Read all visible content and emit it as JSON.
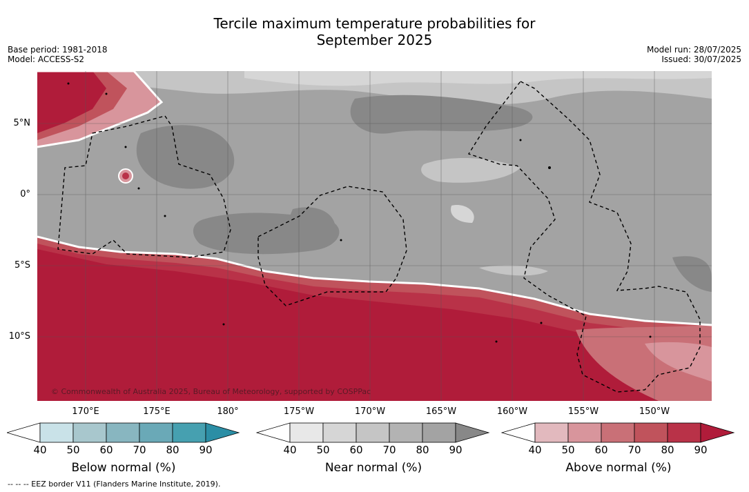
{
  "title_line1": "Tercile maximum temperature probabilities for",
  "title_line2": "September 2025",
  "base_period": "Base period: 1981-2018",
  "model": "Model: ACCESS-S2",
  "model_run": "Model run: 28/07/2025",
  "issued": "Issued: 30/07/2025",
  "copyright": "© Commonwealth of Australia 2025, Bureau of Meteorology, supported by COSPPac",
  "lat_labels": [
    "5°N",
    "0°",
    "5°S",
    "10°S"
  ],
  "lon_labels": [
    "170°E",
    "175°E",
    "180°",
    "175°W",
    "170°W",
    "165°W",
    "160°W",
    "155°W",
    "150°W"
  ],
  "colorbars": [
    {
      "label": "Below normal (%)",
      "ticks": [
        "40",
        "50",
        "60",
        "70",
        "80",
        "90"
      ],
      "colors": [
        "#ffffff",
        "#c9e2e8",
        "#a8c7cd",
        "#88b6c0",
        "#6aa9b7",
        "#46a0b0",
        "#2b8ea5"
      ]
    },
    {
      "label": "Near normal (%)",
      "ticks": [
        "40",
        "50",
        "60",
        "70",
        "80",
        "90"
      ],
      "colors": [
        "#ffffff",
        "#e8e8e8",
        "#d6d6d6",
        "#c5c5c5",
        "#b3b3b3",
        "#a3a3a3",
        "#888888"
      ]
    },
    {
      "label": "Above normal (%)",
      "ticks": [
        "40",
        "50",
        "60",
        "70",
        "80",
        "90"
      ],
      "colors": [
        "#ffffff",
        "#e2b9be",
        "#d8959c",
        "#c97077",
        "#c0535c",
        "#b93248",
        "#b01c3a"
      ]
    }
  ],
  "footer": "--  --  -- EEZ border V11 (Flanders Marine Institute, 2019)."
}
